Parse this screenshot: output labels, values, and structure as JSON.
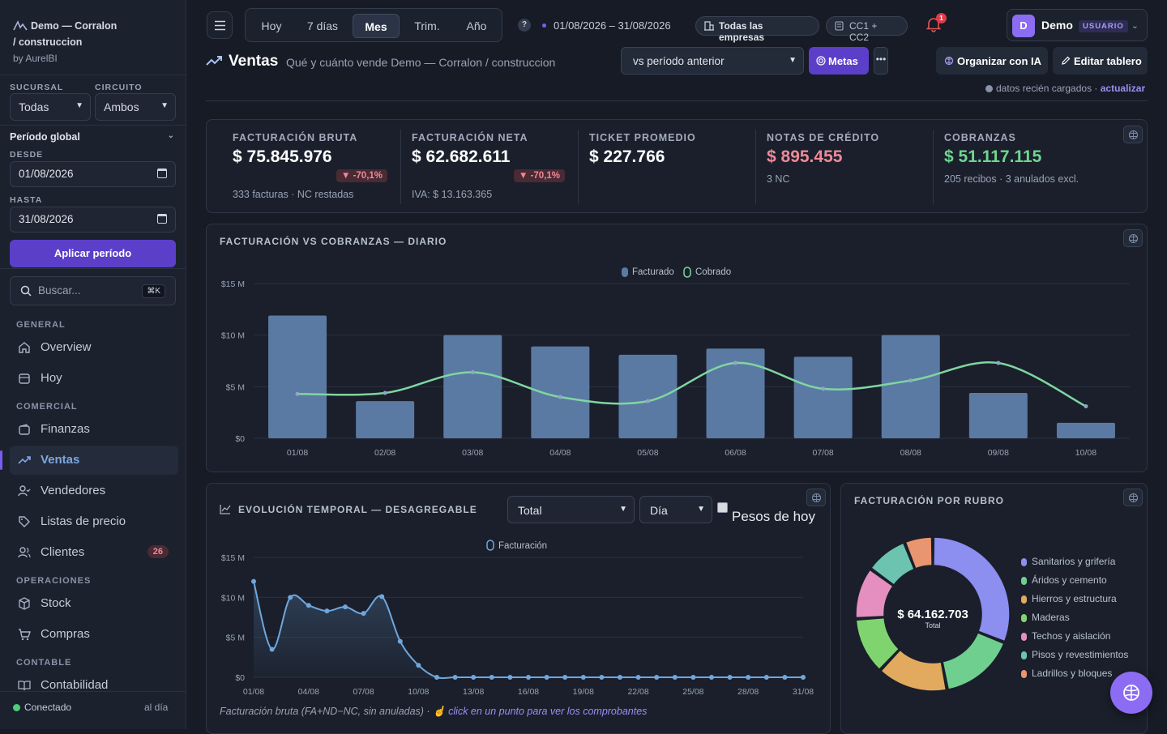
{
  "app": {
    "brand_line1": "Demo — Corralon",
    "brand_line2": "/ construccion",
    "brand_by": "by AurelBI"
  },
  "sidebar": {
    "sucursal_label": "SUCURSAL",
    "sucursal_value": "Todas",
    "circuito_label": "CIRCUITO",
    "circuito_value": "Ambos",
    "periodo_label": "Período global",
    "desde_label": "DESDE",
    "desde_value": "01/08/2026",
    "hasta_label": "HASTA",
    "hasta_value": "31/08/2026",
    "apply_label": "Aplicar período",
    "search_placeholder": "Buscar...",
    "search_kbd": "⌘K",
    "sections": {
      "general": "GENERAL",
      "comercial": "COMERCIAL",
      "operaciones": "OPERACIONES",
      "contable": "CONTABLE"
    },
    "items": {
      "overview": "Overview",
      "hoy": "Hoy",
      "finanzas": "Finanzas",
      "ventas": "Ventas",
      "vendedores": "Vendedores",
      "listas": "Listas de precio",
      "clientes": "Clientes",
      "clientes_badge": "26",
      "stock": "Stock",
      "compras": "Compras",
      "contabilidad": "Contabilidad"
    },
    "status": "Conectado",
    "status_right": "al día"
  },
  "topbar": {
    "periods": [
      "Hoy",
      "7 días",
      "Mes",
      "Trim.",
      "Año"
    ],
    "active_period": "Mes",
    "help": "?",
    "date_range": "01/08/2026 – 31/08/2026",
    "empresas": "Todas las empresas",
    "cc": "CC1 + CC2",
    "notif_count": "1",
    "user_name": "Demo",
    "user_initial": "D",
    "user_role": "USUARIO"
  },
  "header": {
    "title": "Ventas",
    "subtitle": "Qué y cuánto vende Demo — Corralon / construccion",
    "compare": "vs período anterior",
    "metas": "Metas",
    "dots": "•••",
    "organizar": "Organizar con IA",
    "editar": "Editar tablero",
    "fresh_text": "datos recién cargados ·",
    "fresh_link": "actualizar"
  },
  "kpis": [
    {
      "title": "FACTURACIÓN BRUTA",
      "value": "$ 75.845.976",
      "delta": "▼ -70,1%",
      "sub": "333 facturas · NC restadas"
    },
    {
      "title": "FACTURACIÓN NETA",
      "value": "$ 62.682.611",
      "delta": "▼ -70,1%",
      "sub": "IVA: $ 13.163.365"
    },
    {
      "title": "TICKET PROMEDIO",
      "value": "$ 227.766"
    },
    {
      "title": "NOTAS DE CRÉDITO",
      "value": "$ 895.455",
      "sub": "3 NC"
    },
    {
      "title": "COBRANZAS",
      "value": "$ 51.117.115",
      "sub": "205 recibos · 3 anulados excl."
    }
  ],
  "colors": {
    "accent": "#5b3fc9",
    "bar": "#5b7aa3",
    "cobrado": "#7fd6a0",
    "line": "#6fa7dd",
    "negative": "#ee8a99",
    "positive": "#6ed68f"
  },
  "charts_meta": {
    "daily_title": "FACTURACIÓN VS COBRANZAS — DIARIO",
    "evol_title": "EVOLUCIÓN TEMPORAL — DESAGREGABLE",
    "evol_metric": "Total",
    "evol_grain": "Día",
    "evol_check": "Pesos de hoy",
    "evol_footer": "Facturación bruta (FA+ND−NC, sin anuladas) ·",
    "evol_footer_link": "click en un punto para ver los comprobantes",
    "rubro_title": "FACTURACIÓN POR RUBRO",
    "donut_total": "$ 64.162.703",
    "donut_total_label": "Total"
  },
  "chart_data": [
    {
      "type": "bar",
      "categories": [
        "01/08",
        "02/08",
        "03/08",
        "04/08",
        "05/08",
        "06/08",
        "07/08",
        "08/08",
        "09/08",
        "10/08"
      ],
      "series": [
        {
          "name": "Facturado",
          "values": [
            11.9,
            3.6,
            10.0,
            8.9,
            8.1,
            8.7,
            7.9,
            10.0,
            4.4,
            1.5
          ]
        },
        {
          "name": "Cobrado",
          "values": [
            4.3,
            4.4,
            6.4,
            4.0,
            3.6,
            7.3,
            4.8,
            5.6,
            7.3,
            3.1
          ]
        }
      ],
      "yticks": [
        "$0",
        "$5 M",
        "$10 M",
        "$15 M"
      ],
      "ylim": [
        0,
        15
      ],
      "legend": "top-center",
      "grid": true
    },
    {
      "type": "line",
      "x": [
        "01/08",
        "02/08",
        "03/08",
        "04/08",
        "05/08",
        "06/08",
        "07/08",
        "08/08",
        "09/08",
        "10/08",
        "11/08",
        "12/08",
        "13/08",
        "14/08",
        "15/08",
        "16/08",
        "17/08",
        "18/08",
        "19/08",
        "20/08",
        "21/08",
        "22/08",
        "23/08",
        "24/08",
        "25/08",
        "26/08",
        "27/08",
        "28/08",
        "29/08",
        "30/08",
        "31/08"
      ],
      "xticks": [
        "01/08",
        "04/08",
        "07/08",
        "10/08",
        "13/08",
        "16/08",
        "19/08",
        "22/08",
        "25/08",
        "28/08",
        "31/08"
      ],
      "series": [
        {
          "name": "Facturación",
          "values": [
            12.0,
            3.5,
            10.0,
            9.0,
            8.3,
            8.8,
            8.0,
            10.1,
            4.5,
            1.5,
            0,
            0,
            0,
            0,
            0,
            0,
            0,
            0,
            0,
            0,
            0,
            0,
            0,
            0,
            0,
            0,
            0,
            0,
            0,
            0,
            0
          ]
        }
      ],
      "yticks": [
        "$0",
        "$5 M",
        "$10 M",
        "$15 M"
      ],
      "ylim": [
        0,
        15
      ],
      "legend": "top-center",
      "grid": true
    },
    {
      "type": "pie",
      "labels": [
        "Sanitarios y grifería",
        "Áridos y cemento",
        "Hierros y estructura",
        "Maderas",
        "Techos y aislación",
        "Pisos y revestimientos",
        "Ladrillos y bloques"
      ],
      "values": [
        31,
        16,
        15,
        12,
        11,
        9,
        6
      ],
      "colors": [
        "#8c8ef0",
        "#6fcf8f",
        "#e2aa5e",
        "#7fd470",
        "#e48fc0",
        "#6cc4b0",
        "#e89570"
      ],
      "legend": "right"
    }
  ]
}
